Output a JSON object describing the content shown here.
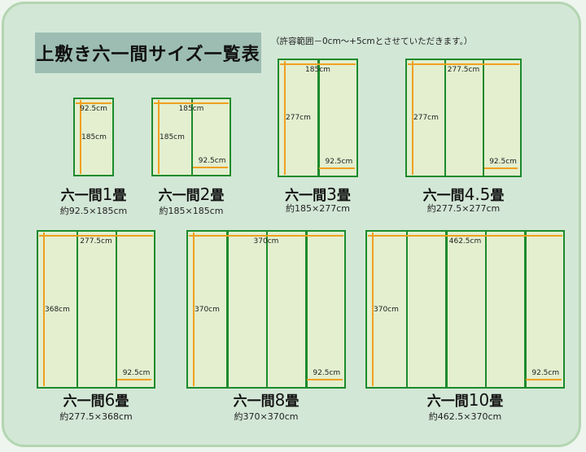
{
  "title": "上敷き六一間サイズ一覧表",
  "note": "（許容範囲－0cm～+5cmとさせていただきます。）",
  "colors": {
    "border": "#1c8a2c",
    "mat_fill": "#e3efcf",
    "arrow": "#f0a020",
    "title_bg": "#9dbdb2",
    "background": "#d3e7d6"
  },
  "mats": [
    {
      "prefix": "六一間",
      "count": "1",
      "suffix": "畳",
      "size": "約92.5×185cm",
      "panels": 1,
      "width_label": "92.5cm",
      "height_label": "185cm",
      "panel_label": ""
    },
    {
      "prefix": "六一間",
      "count": "2",
      "suffix": "畳",
      "size": "約185×185cm",
      "panels": 2,
      "width_label": "185cm",
      "height_label": "185cm",
      "panel_label": "92.5cm"
    },
    {
      "prefix": "六一間",
      "count": "3",
      "suffix": "畳",
      "size": "約185×277cm",
      "panels": 2,
      "width_label": "185cm",
      "height_label": "277cm",
      "panel_label": "92.5cm"
    },
    {
      "prefix": "六一間",
      "count": "4.5",
      "suffix": "畳",
      "size": "約277.5×277cm",
      "panels": 3,
      "width_label": "277.5cm",
      "height_label": "277cm",
      "panel_label": "92.5cm"
    },
    {
      "prefix": "六一間",
      "count": "6",
      "suffix": "畳",
      "size": "約277.5×368cm",
      "panels": 3,
      "width_label": "277.5cm",
      "height_label": "368cm",
      "panel_label": "92.5cm"
    },
    {
      "prefix": "六一間",
      "count": "8",
      "suffix": "畳",
      "size": "約370×370cm",
      "panels": 4,
      "width_label": "370cm",
      "height_label": "370cm",
      "panel_label": "92.5cm"
    },
    {
      "prefix": "六一間",
      "count": "10",
      "suffix": "畳",
      "size": "約462.5×370cm",
      "panels": 5,
      "width_label": "462.5cm",
      "height_label": "370cm",
      "panel_label": "92.5cm"
    }
  ]
}
